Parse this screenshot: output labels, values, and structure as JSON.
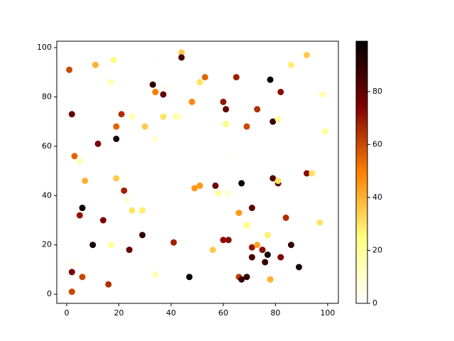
{
  "chart_data": {
    "type": "scatter",
    "x": [
      1,
      11,
      18,
      17,
      2,
      3,
      5,
      7,
      6,
      5,
      2,
      2,
      6,
      3,
      10,
      14,
      16,
      17,
      12,
      19,
      19,
      21,
      19,
      22,
      23,
      25,
      29,
      24,
      29,
      25,
      30,
      33,
      34,
      37,
      37,
      42,
      43,
      34,
      34,
      41,
      44,
      44,
      47,
      49,
      48,
      51,
      51,
      53,
      56,
      57,
      58,
      60,
      61,
      61,
      62,
      60,
      62,
      65,
      66,
      67,
      66,
      67,
      69,
      69,
      69,
      71,
      71,
      71,
      73,
      73,
      75,
      76,
      77,
      77,
      78,
      78,
      79,
      79,
      81,
      81,
      81,
      82,
      82,
      84,
      86,
      86,
      89,
      92,
      92,
      94,
      97,
      98,
      99,
      62,
      38,
      34
    ],
    "y": [
      91,
      93,
      95,
      86,
      73,
      56,
      54,
      46,
      35,
      32,
      9,
      1,
      7,
      12,
      20,
      30,
      4,
      20,
      61,
      63,
      68,
      73,
      47,
      42,
      38,
      34,
      34,
      18,
      24,
      72,
      68,
      85,
      82,
      81,
      72,
      72,
      72,
      63,
      8,
      21,
      98,
      96,
      7,
      43,
      78,
      86,
      44,
      88,
      18,
      44,
      41,
      78,
      75,
      69,
      41,
      22,
      22,
      88,
      33,
      45,
      7,
      6,
      7,
      28,
      68,
      35,
      19,
      15,
      20,
      75,
      18,
      13,
      16,
      24,
      6,
      87,
      70,
      47,
      45,
      46,
      71,
      82,
      15,
      31,
      20,
      93,
      11,
      97,
      49,
      49,
      29,
      81,
      66,
      56,
      84,
      96
    ],
    "c": [
      60,
      40,
      25,
      15,
      80,
      55,
      15,
      40,
      95,
      70,
      75,
      60,
      60,
      5,
      95,
      75,
      65,
      20,
      75,
      95,
      55,
      65,
      35,
      68,
      8,
      30,
      28,
      78,
      90,
      15,
      35,
      90,
      50,
      80,
      30,
      20,
      12,
      8,
      15,
      68,
      35,
      85,
      98,
      45,
      48,
      30,
      45,
      55,
      35,
      78,
      20,
      70,
      80,
      25,
      10,
      72,
      72,
      68,
      45,
      98,
      62,
      88,
      90,
      25,
      60,
      82,
      70,
      85,
      42,
      65,
      72,
      88,
      96,
      28,
      40,
      98,
      88,
      82,
      80,
      30,
      20,
      72,
      75,
      65,
      90,
      28,
      95,
      35,
      72,
      30,
      30,
      15,
      20,
      2,
      3,
      2
    ],
    "colormap": "afmhot_r",
    "clim": [
      0,
      99
    ],
    "cticks": [
      0,
      20,
      40,
      60,
      80
    ],
    "xlim": [
      -3.8,
      104.1
    ],
    "xticks": [
      0,
      20,
      40,
      60,
      80,
      100
    ],
    "ylim": [
      -3.7,
      102.6
    ],
    "yticks": [
      0,
      20,
      40,
      60,
      80,
      100
    ]
  }
}
